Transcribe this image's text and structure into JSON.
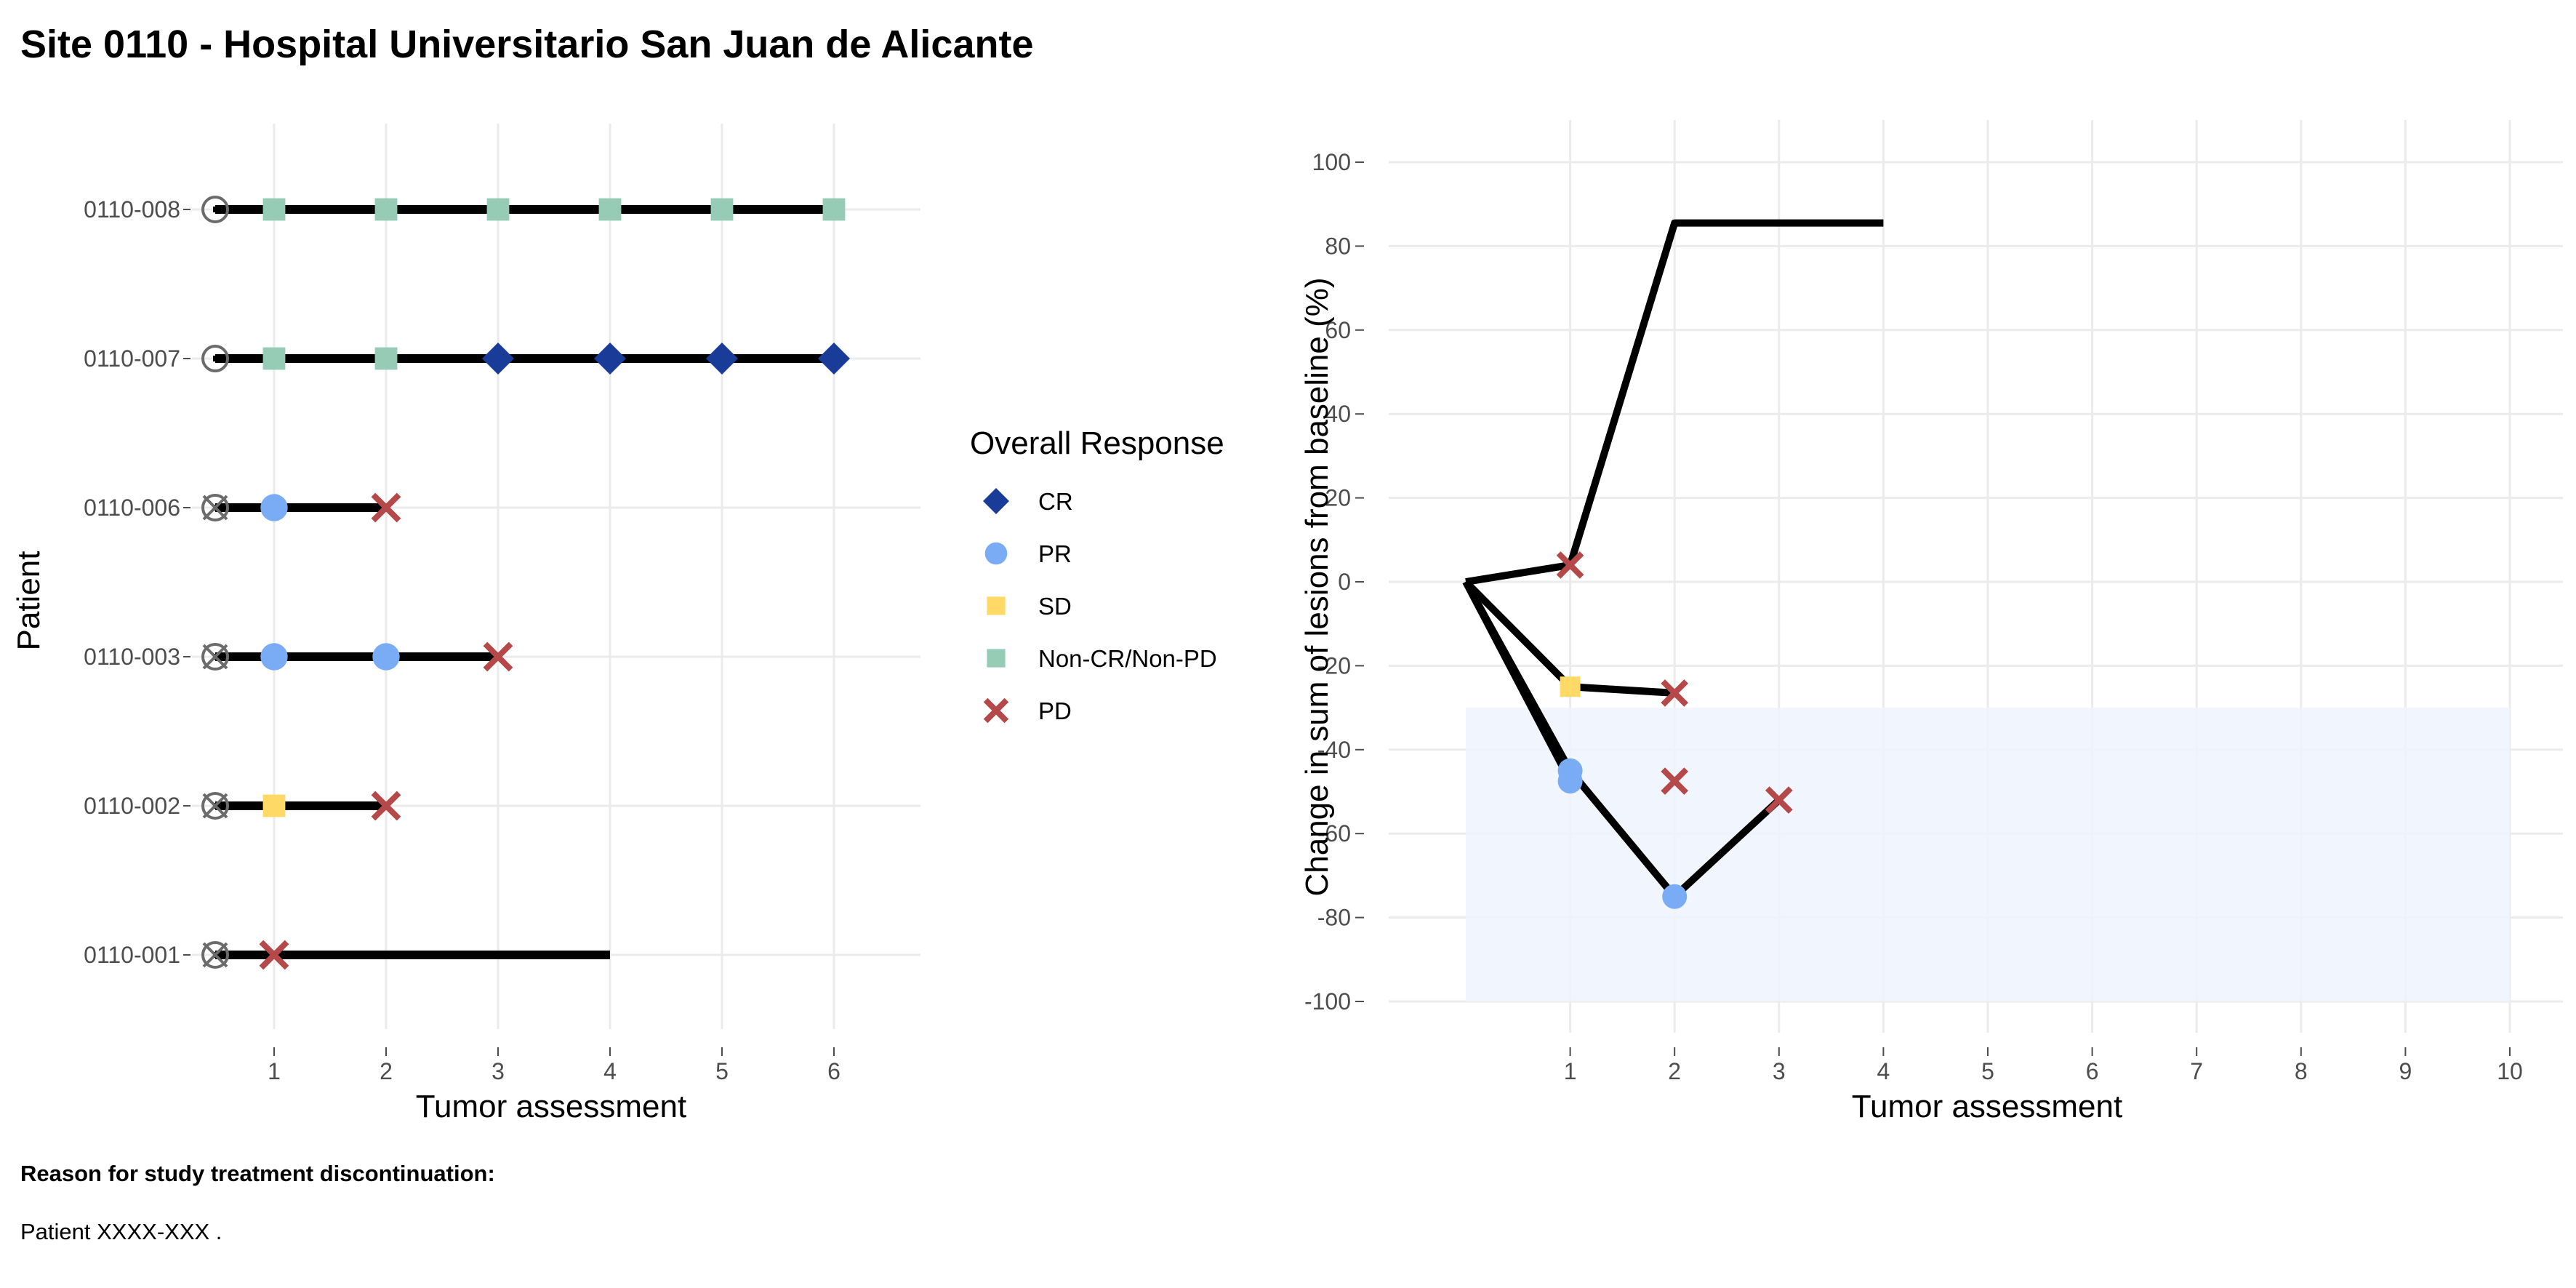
{
  "page": {
    "title": "Site 0110 - Hospital Universitario San Juan de Alicante",
    "footer_heading": "Reason for study treatment discontinuation:",
    "footer_text": "Patient XXXX-XXX ."
  },
  "colors": {
    "CR": "#1a3c99",
    "PR": "#7aabf5",
    "SD": "#ffd966",
    "NonCRNonPD": "#96ccb6",
    "PD": "#b54848",
    "line": "#000000",
    "grid": "#ebebeb",
    "band": "#eef3fd",
    "baseline_marker": "#6b6b6b"
  },
  "legend": {
    "title": "Overall Response",
    "items": [
      {
        "key": "CR",
        "label": "CR",
        "shape": "diamond"
      },
      {
        "key": "PR",
        "label": "PR",
        "shape": "circle"
      },
      {
        "key": "SD",
        "label": "SD",
        "shape": "square"
      },
      {
        "key": "NonCRNonPD",
        "label": "Non-CR/Non-PD",
        "shape": "square"
      },
      {
        "key": "PD",
        "label": "PD",
        "shape": "cross"
      }
    ]
  },
  "chart_data": [
    {
      "type": "line",
      "subtype": "swimmer",
      "xlabel": "Tumor assessment",
      "ylabel": "Patient",
      "xlim": [
        0,
        6.3
      ],
      "x_ticks": [
        1,
        2,
        3,
        4,
        5,
        6
      ],
      "grid": true,
      "patients": [
        {
          "id": "0110-008",
          "end": 6,
          "discontinued": false,
          "assessments": [
            {
              "x": 1,
              "r": "NonCRNonPD"
            },
            {
              "x": 2,
              "r": "NonCRNonPD"
            },
            {
              "x": 3,
              "r": "NonCRNonPD"
            },
            {
              "x": 4,
              "r": "NonCRNonPD"
            },
            {
              "x": 5,
              "r": "NonCRNonPD"
            },
            {
              "x": 6,
              "r": "NonCRNonPD"
            }
          ]
        },
        {
          "id": "0110-007",
          "end": 6,
          "discontinued": false,
          "assessments": [
            {
              "x": 1,
              "r": "NonCRNonPD"
            },
            {
              "x": 2,
              "r": "NonCRNonPD"
            },
            {
              "x": 3,
              "r": "CR"
            },
            {
              "x": 4,
              "r": "CR"
            },
            {
              "x": 5,
              "r": "CR"
            },
            {
              "x": 6,
              "r": "CR"
            }
          ]
        },
        {
          "id": "0110-006",
          "end": 2,
          "discontinued": true,
          "assessments": [
            {
              "x": 1,
              "r": "PR"
            },
            {
              "x": 2,
              "r": "PD"
            }
          ]
        },
        {
          "id": "0110-003",
          "end": 3,
          "discontinued": true,
          "assessments": [
            {
              "x": 1,
              "r": "PR"
            },
            {
              "x": 2,
              "r": "PR"
            },
            {
              "x": 3,
              "r": "PD"
            }
          ]
        },
        {
          "id": "0110-002",
          "end": 2,
          "discontinued": true,
          "assessments": [
            {
              "x": 1,
              "r": "SD"
            },
            {
              "x": 2,
              "r": "PD"
            }
          ]
        },
        {
          "id": "0110-001",
          "end": 4,
          "discontinued": true,
          "assessments": [
            {
              "x": 1,
              "r": "PD"
            }
          ]
        }
      ]
    },
    {
      "type": "line",
      "subtype": "spider",
      "xlabel": "Tumor assessment",
      "ylabel": "Change in sum of lesions from baseline (%)",
      "xlim": [
        -0.75,
        10.5
      ],
      "ylim": [
        -110,
        110
      ],
      "x_ticks": [
        1,
        2,
        3,
        4,
        5,
        6,
        7,
        8,
        9,
        10
      ],
      "y_ticks": [
        100,
        80,
        60,
        40,
        20,
        0,
        -20,
        -40,
        -60,
        -80,
        -100
      ],
      "grid": true,
      "shaded_band": {
        "x": [
          0,
          10
        ],
        "y": [
          -100,
          -30
        ]
      },
      "series": [
        {
          "points": [
            {
              "x": 0,
              "y": 0
            },
            {
              "x": 1,
              "y": 4,
              "r": "PD"
            },
            {
              "x": 2,
              "y": 85.5
            },
            {
              "x": 4,
              "y": 85.5
            }
          ]
        },
        {
          "points": [
            {
              "x": 0,
              "y": 0
            },
            {
              "x": 1,
              "y": -25,
              "r": "SD"
            },
            {
              "x": 2,
              "y": -26.5,
              "r": "PD"
            }
          ]
        },
        {
          "points": [
            {
              "x": 0,
              "y": 0
            },
            {
              "x": 1,
              "y": -45,
              "r": "PR"
            },
            {
              "x": 2,
              "y": -75,
              "r": "PR"
            },
            {
              "x": 3,
              "y": -52,
              "r": "PD"
            }
          ]
        },
        {
          "points": [
            {
              "x": 0,
              "y": 0
            },
            {
              "x": 1,
              "y": -47.5,
              "r": "PR"
            }
          ]
        },
        {
          "points": [
            {
              "x": 2,
              "y": -47.5,
              "r": "PD"
            }
          ]
        }
      ]
    }
  ]
}
